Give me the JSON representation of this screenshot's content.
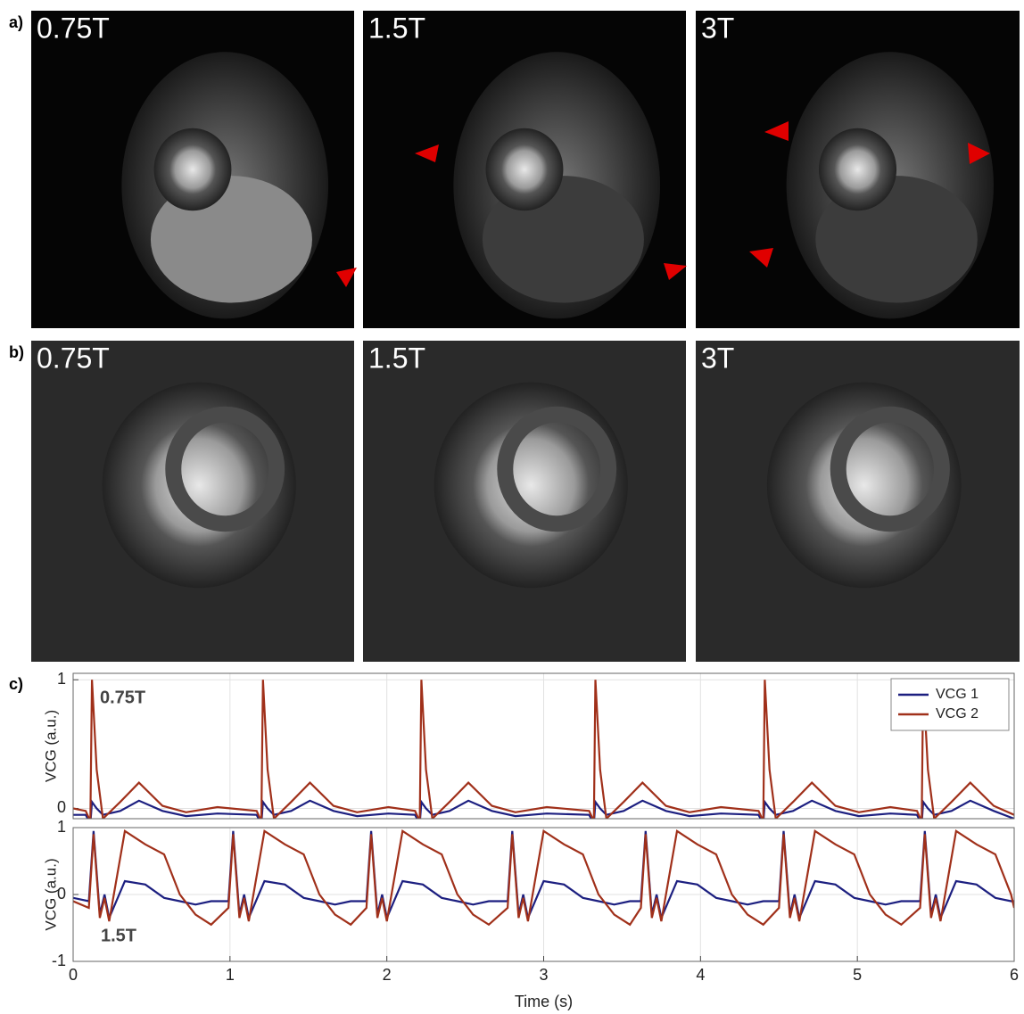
{
  "figure": {
    "image_rows": [
      {
        "label": "a)",
        "images": [
          "0.75T",
          "1.5T",
          "3T"
        ]
      },
      {
        "label": "b)",
        "images": [
          "0.75T",
          "1.5T",
          "3T"
        ]
      }
    ],
    "chart_label": "c)"
  },
  "chart_data": [
    {
      "type": "line",
      "ylabel": "VCG (a.u.)",
      "annotation": "0.75T",
      "legend": "upper right",
      "grid": true,
      "xlim": [
        0,
        6
      ],
      "ylim": [
        -0.08,
        1.05
      ],
      "yticks": [
        0,
        1
      ],
      "x": [
        0,
        0.08,
        0.11,
        0.12,
        0.15,
        0.19,
        0.3,
        0.42,
        0.57,
        0.72,
        0.92,
        1.17,
        1.2,
        1.21,
        1.24,
        1.28,
        1.39,
        1.51,
        1.66,
        1.81,
        2.01,
        2.18,
        2.21,
        2.22,
        2.25,
        2.29,
        2.4,
        2.52,
        2.67,
        2.82,
        3.02,
        3.29,
        3.32,
        3.33,
        3.36,
        3.4,
        3.51,
        3.63,
        3.78,
        3.93,
        4.13,
        4.37,
        4.4,
        4.41,
        4.44,
        4.48,
        4.59,
        4.71,
        4.86,
        5.01,
        5.21,
        5.38,
        5.41,
        5.42,
        5.45,
        5.49,
        5.6,
        5.72,
        5.87,
        6.0
      ],
      "series": [
        {
          "name": "VCG 1",
          "color": "#1c1f80",
          "values": [
            -0.05,
            -0.05,
            -0.12,
            0.05,
            0,
            -0.05,
            -0.02,
            0.06,
            -0.02,
            -0.06,
            -0.04,
            -0.05,
            -0.12,
            0.05,
            0,
            -0.05,
            -0.02,
            0.06,
            -0.02,
            -0.06,
            -0.04,
            -0.05,
            -0.12,
            0.05,
            0,
            -0.05,
            -0.02,
            0.06,
            -0.02,
            -0.06,
            -0.04,
            -0.05,
            -0.12,
            0.05,
            0,
            -0.05,
            -0.02,
            0.06,
            -0.02,
            -0.06,
            -0.04,
            -0.05,
            -0.12,
            0.05,
            0,
            -0.05,
            -0.02,
            0.06,
            -0.02,
            -0.06,
            -0.04,
            -0.05,
            -0.12,
            0.05,
            0,
            -0.05,
            -0.02,
            0.06,
            -0.02,
            -0.08
          ]
        },
        {
          "name": "VCG 2",
          "color": "#a0301a",
          "values": [
            0,
            -0.02,
            -0.1,
            1.0,
            0.3,
            -0.08,
            0.05,
            0.2,
            0.02,
            -0.03,
            0.01,
            -0.02,
            -0.1,
            1.0,
            0.3,
            -0.08,
            0.05,
            0.2,
            0.02,
            -0.03,
            0.01,
            -0.02,
            -0.1,
            1.0,
            0.3,
            -0.08,
            0.05,
            0.2,
            0.02,
            -0.03,
            0.01,
            -0.02,
            -0.1,
            1.0,
            0.3,
            -0.08,
            0.05,
            0.2,
            0.02,
            -0.03,
            0.01,
            -0.02,
            -0.1,
            1.0,
            0.3,
            -0.08,
            0.05,
            0.2,
            0.02,
            -0.03,
            0.01,
            -0.02,
            -0.1,
            1.0,
            0.3,
            -0.08,
            0.05,
            0.2,
            0.02,
            -0.05
          ]
        }
      ]
    },
    {
      "type": "line",
      "ylabel": "VCG (a.u.)",
      "xlabel": "Time (s)",
      "annotation": "1.5T",
      "grid": true,
      "xlim": [
        0,
        6
      ],
      "ylim": [
        -1,
        1
      ],
      "yticks": [
        -1,
        0,
        1
      ],
      "xticks": [
        0,
        1,
        2,
        3,
        4,
        5,
        6
      ],
      "x": [
        0,
        0.1,
        0.13,
        0.17,
        0.2,
        0.23,
        0.33,
        0.46,
        0.58,
        0.68,
        0.78,
        0.88,
        0.99,
        1.02,
        1.06,
        1.09,
        1.12,
        1.22,
        1.35,
        1.47,
        1.57,
        1.67,
        1.77,
        1.87,
        1.9,
        1.94,
        1.97,
        2.0,
        2.1,
        2.23,
        2.35,
        2.45,
        2.55,
        2.65,
        2.77,
        2.8,
        2.84,
        2.87,
        2.9,
        3.0,
        3.13,
        3.25,
        3.35,
        3.45,
        3.55,
        3.62,
        3.65,
        3.69,
        3.72,
        3.75,
        3.85,
        3.98,
        4.1,
        4.2,
        4.3,
        4.4,
        4.5,
        4.53,
        4.57,
        4.6,
        4.63,
        4.73,
        4.86,
        4.98,
        5.08,
        5.18,
        5.28,
        5.4,
        5.43,
        5.47,
        5.5,
        5.53,
        5.63,
        5.76,
        5.88,
        5.98,
        6.0
      ],
      "series": [
        {
          "name": "VCG 1",
          "color": "#1c1f80",
          "values": [
            -0.05,
            -0.1,
            0.95,
            -0.3,
            0,
            -0.35,
            0.2,
            0.15,
            -0.05,
            -0.1,
            -0.15,
            -0.1,
            -0.1,
            0.95,
            -0.3,
            0,
            -0.35,
            0.2,
            0.15,
            -0.05,
            -0.1,
            -0.15,
            -0.1,
            -0.1,
            0.95,
            -0.3,
            0,
            -0.35,
            0.2,
            0.15,
            -0.05,
            -0.1,
            -0.15,
            -0.1,
            -0.1,
            0.95,
            -0.3,
            0,
            -0.35,
            0.2,
            0.15,
            -0.05,
            -0.1,
            -0.15,
            -0.1,
            -0.1,
            0.95,
            -0.3,
            0,
            -0.35,
            0.2,
            0.15,
            -0.05,
            -0.1,
            -0.15,
            -0.1,
            -0.1,
            0.95,
            -0.3,
            0,
            -0.35,
            0.2,
            0.15,
            -0.05,
            -0.1,
            -0.15,
            -0.1,
            -0.1,
            0.95,
            -0.3,
            0,
            -0.35,
            0.2,
            0.15,
            -0.05,
            -0.1,
            -0.1
          ]
        },
        {
          "name": "VCG 2",
          "color": "#a0301a",
          "values": [
            -0.1,
            -0.2,
            0.9,
            -0.35,
            -0.05,
            -0.4,
            0.95,
            0.75,
            0.6,
            0,
            -0.3,
            -0.45,
            -0.2,
            0.9,
            -0.35,
            -0.05,
            -0.4,
            0.95,
            0.75,
            0.6,
            0,
            -0.3,
            -0.45,
            -0.2,
            0.9,
            -0.35,
            -0.05,
            -0.4,
            0.95,
            0.75,
            0.6,
            0,
            -0.3,
            -0.45,
            -0.2,
            0.9,
            -0.35,
            -0.05,
            -0.4,
            0.95,
            0.75,
            0.6,
            0,
            -0.3,
            -0.45,
            -0.2,
            0.9,
            -0.35,
            -0.05,
            -0.4,
            0.95,
            0.75,
            0.6,
            0,
            -0.3,
            -0.45,
            -0.2,
            0.9,
            -0.35,
            -0.05,
            -0.4,
            0.95,
            0.75,
            0.6,
            0,
            -0.3,
            -0.45,
            -0.2,
            0.9,
            -0.35,
            -0.05,
            -0.4,
            0.95,
            0.75,
            0.6,
            0,
            -0.2
          ]
        }
      ]
    }
  ]
}
